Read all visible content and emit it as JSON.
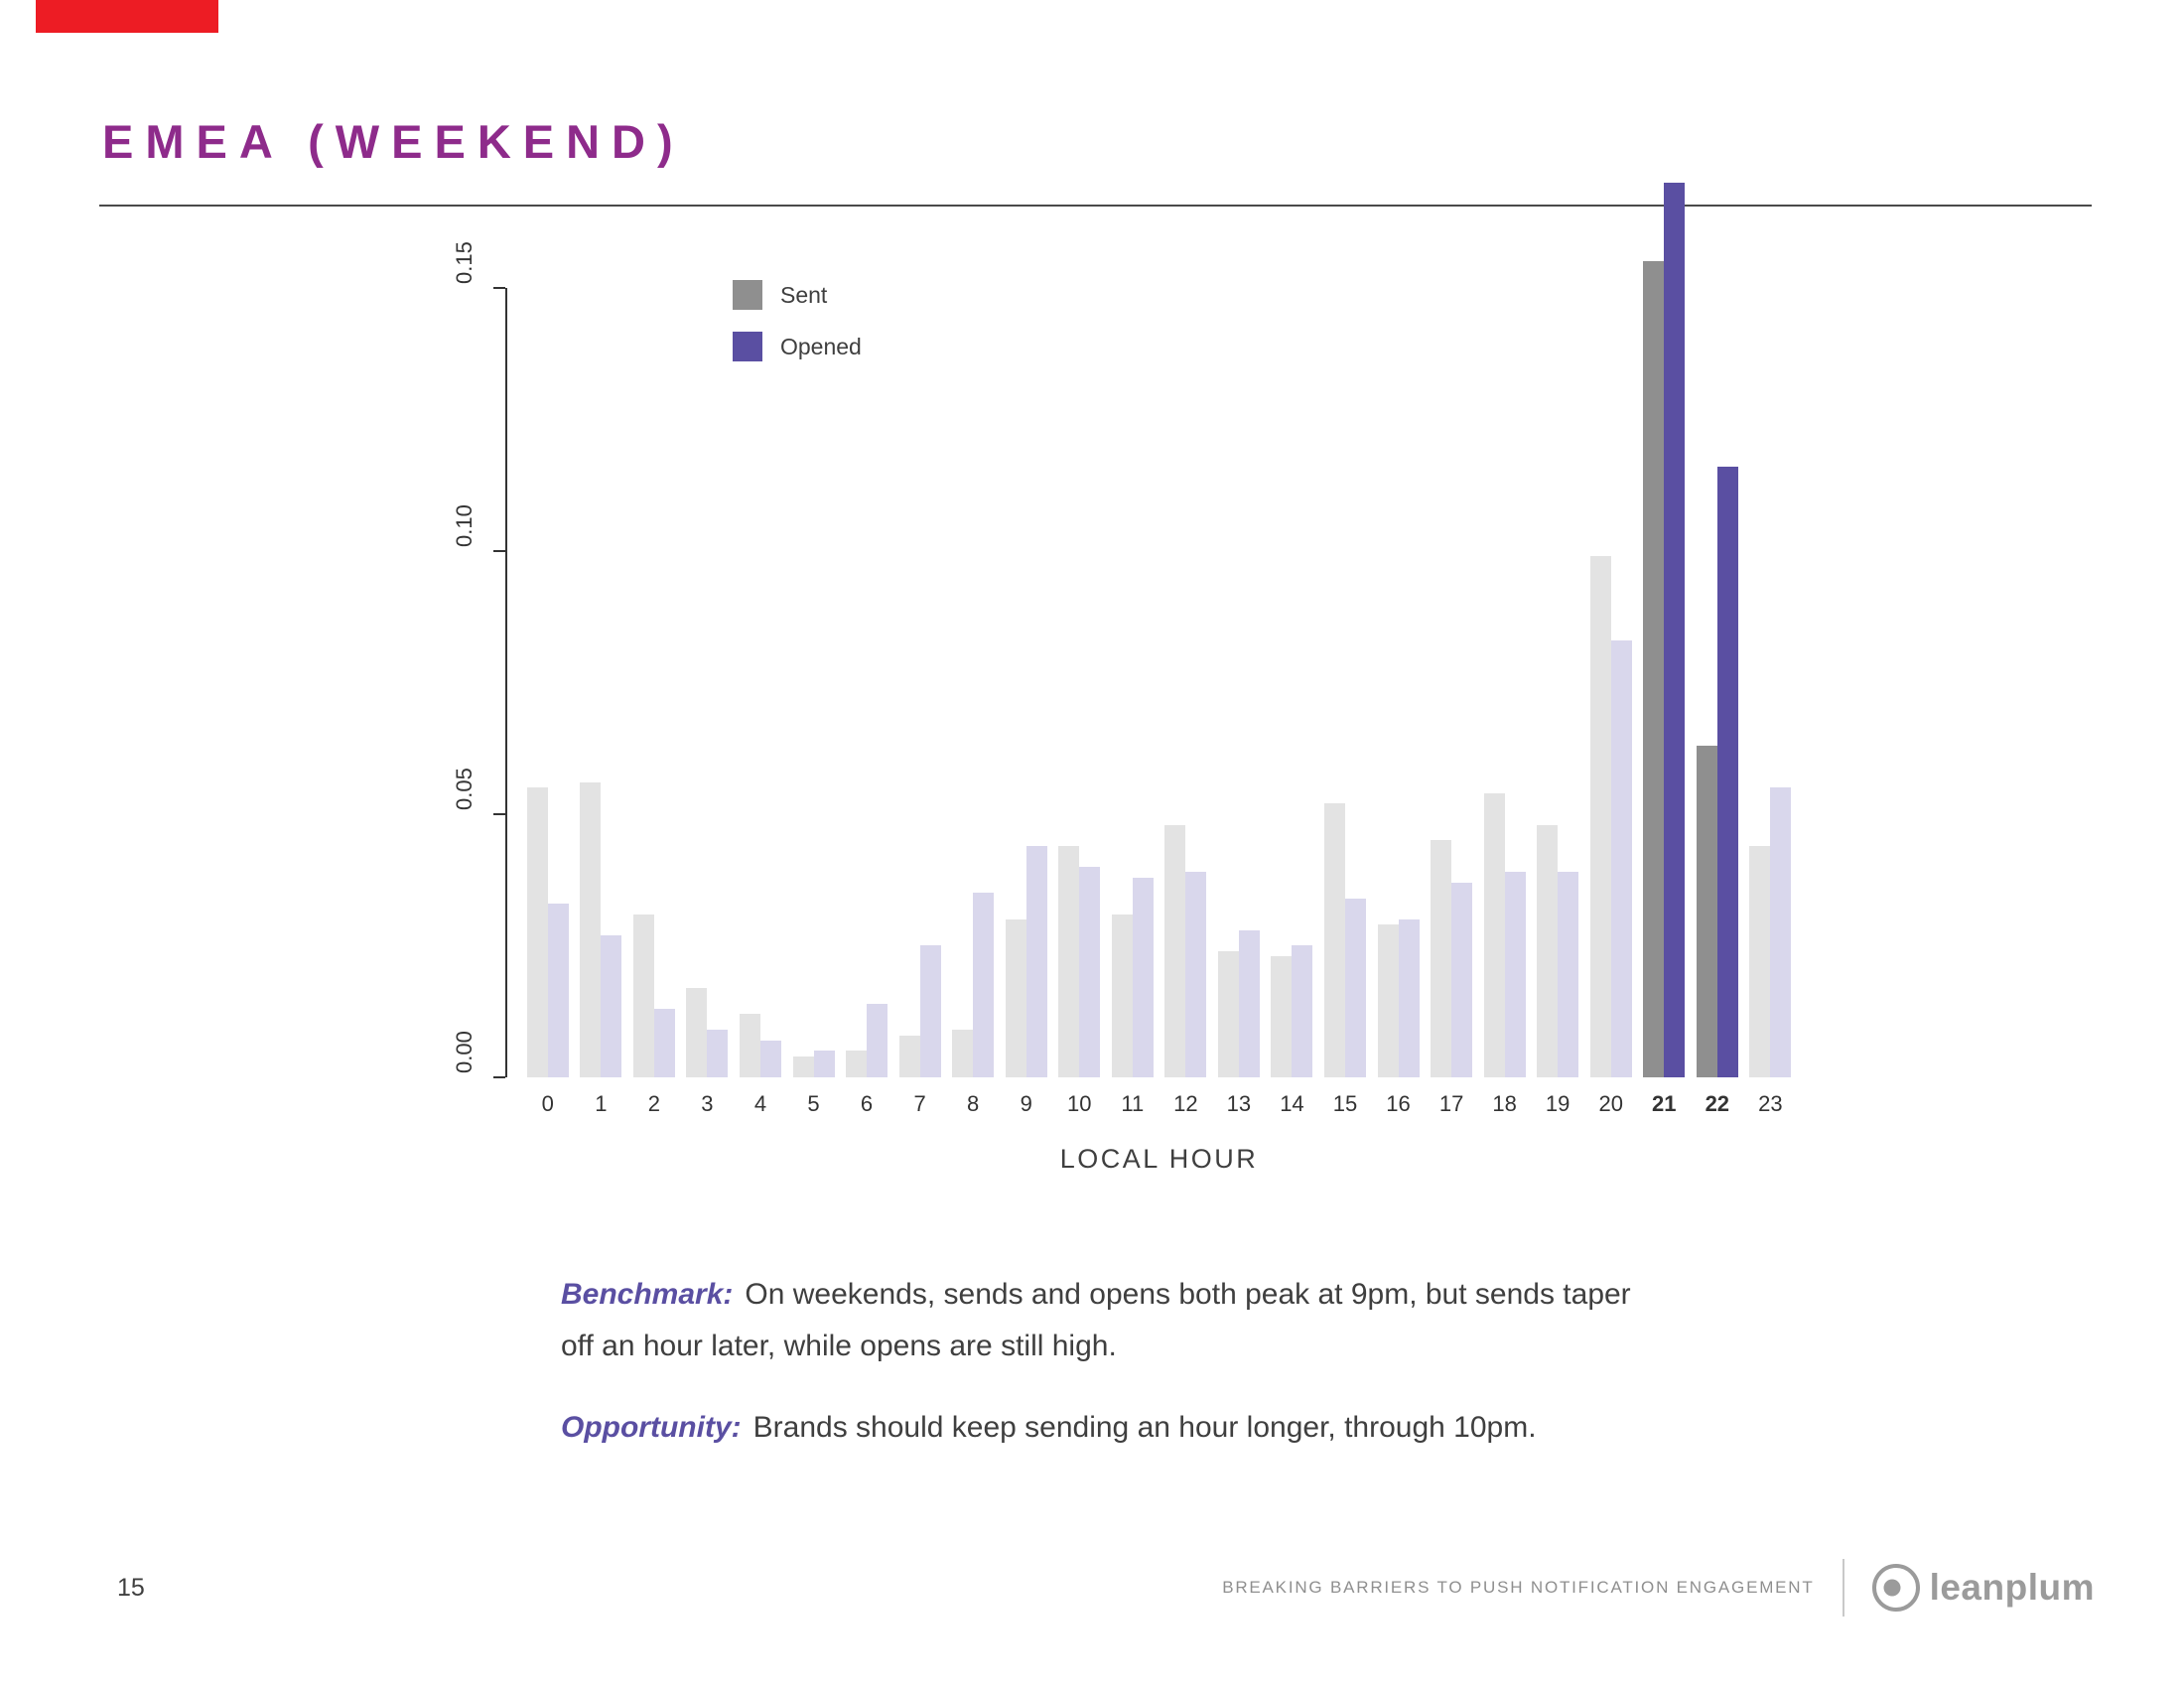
{
  "slide": {
    "title": "EMEA (WEEKEND)",
    "page_number": "15",
    "footer_text": "BREAKING BARRIERS TO PUSH NOTIFICATION ENGAGEMENT",
    "brand": "leanplum"
  },
  "benchmark": {
    "label": "Benchmark:",
    "text": "On weekends, sends and opens both peak at 9pm, but sends taper off an hour later, while opens are still high."
  },
  "opportunity": {
    "label": "Opportunity:",
    "text": "Brands should keep sending an hour longer, through 10pm."
  },
  "chart_data": {
    "type": "bar",
    "title": "",
    "xlabel": "LOCAL HOUR",
    "ylabel": "",
    "categories": [
      "0",
      "1",
      "2",
      "3",
      "4",
      "5",
      "6",
      "7",
      "8",
      "9",
      "10",
      "11",
      "12",
      "13",
      "14",
      "15",
      "16",
      "17",
      "18",
      "19",
      "20",
      "21",
      "22",
      "23"
    ],
    "series": [
      {
        "name": "Sent",
        "values": [
          0.055,
          0.056,
          0.031,
          0.017,
          0.012,
          0.004,
          0.005,
          0.008,
          0.009,
          0.03,
          0.044,
          0.031,
          0.048,
          0.024,
          0.023,
          0.052,
          0.029,
          0.045,
          0.054,
          0.048,
          0.099,
          0.155,
          0.063,
          0.044
        ]
      },
      {
        "name": "Opened",
        "values": [
          0.033,
          0.027,
          0.013,
          0.009,
          0.007,
          0.005,
          0.014,
          0.025,
          0.035,
          0.044,
          0.04,
          0.038,
          0.039,
          0.028,
          0.025,
          0.034,
          0.03,
          0.037,
          0.039,
          0.039,
          0.083,
          0.17,
          0.116,
          0.055
        ]
      }
    ],
    "ylim": [
      0,
      0.175
    ],
    "yticks": [
      {
        "value": 0.0,
        "label": "0.00"
      },
      {
        "value": 0.05,
        "label": "0.05"
      },
      {
        "value": 0.1,
        "label": "0.10"
      },
      {
        "value": 0.15,
        "label": "0.15"
      }
    ],
    "grid": false,
    "legend_position": "top-inside-left",
    "highlight_hours": [
      21,
      22
    ],
    "colors": {
      "sent": "#8f8f8f",
      "opened": "#5a4fa2",
      "sent_muted": "#e3e3e3",
      "opened_muted": "#d9d7ec",
      "title_accent": "#8e2b8b",
      "note_accent": "#5a4fa2",
      "corner_accent": "#ed1c24"
    }
  }
}
